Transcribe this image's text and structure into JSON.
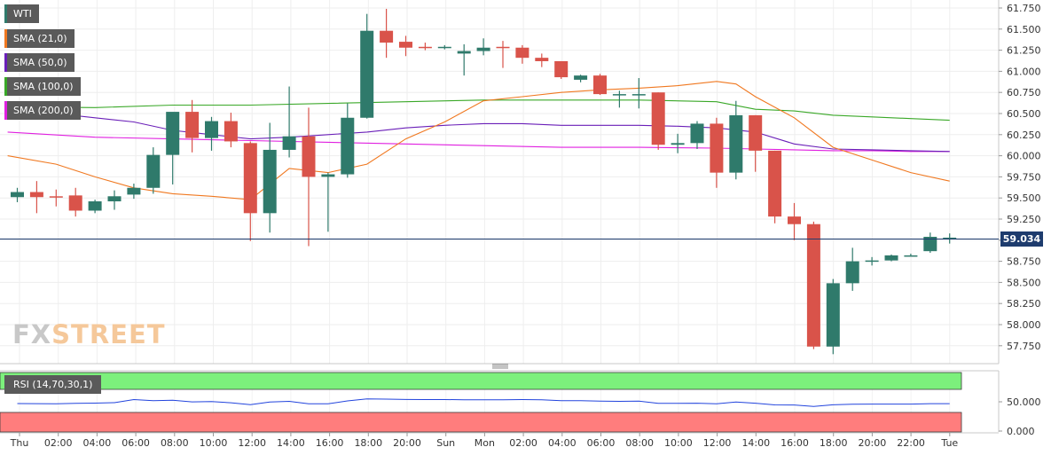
{
  "chart_data": [
    {
      "type": "candlestick",
      "symbol": "WTI",
      "current_price": "59.034",
      "yticks": [
        "61.750",
        "61.500",
        "61.250",
        "61.000",
        "60.750",
        "60.500",
        "60.250",
        "60.000",
        "59.750",
        "59.500",
        "59.250",
        "59.000",
        "58.750",
        "58.500",
        "58.250",
        "58.000",
        "57.750"
      ],
      "ylim": [
        57.65,
        61.82
      ],
      "xticks": [
        "Thu",
        "02:00",
        "04:00",
        "06:00",
        "08:00",
        "10:00",
        "12:00",
        "14:00",
        "16:00",
        "18:00",
        "20:00",
        "Sun",
        "Mon",
        "02:00",
        "04:00",
        "06:00",
        "08:00",
        "10:00",
        "12:00",
        "14:00",
        "16:00",
        "18:00",
        "20:00",
        "22:00",
        "Tue"
      ],
      "legend": [
        "WTI",
        "SMA (21,0)",
        "SMA (50,0)",
        "SMA (100,0)",
        "SMA (200,0)"
      ],
      "colors": {
        "up": "#2f7a6b",
        "down": "#d9534a",
        "sma21": "#f07820",
        "sma50": "#6a1fb8",
        "sma100": "#3aa828",
        "sma200": "#e020e0",
        "price_line": "#1e3c6e"
      },
      "candles": [
        {
          "o": 59.51,
          "h": 59.62,
          "l": 59.45,
          "c": 59.57
        },
        {
          "o": 59.57,
          "h": 59.7,
          "l": 59.32,
          "c": 59.51
        },
        {
          "o": 59.52,
          "h": 59.6,
          "l": 59.4,
          "c": 59.51
        },
        {
          "o": 59.53,
          "h": 59.62,
          "l": 59.28,
          "c": 59.35
        },
        {
          "o": 59.35,
          "h": 59.48,
          "l": 59.32,
          "c": 59.46
        },
        {
          "o": 59.46,
          "h": 59.59,
          "l": 59.36,
          "c": 59.52
        },
        {
          "o": 59.54,
          "h": 59.67,
          "l": 59.49,
          "c": 59.62
        },
        {
          "o": 59.62,
          "h": 60.1,
          "l": 59.55,
          "c": 60.01
        },
        {
          "o": 60.01,
          "h": 60.5,
          "l": 59.66,
          "c": 60.52
        },
        {
          "o": 60.52,
          "h": 60.66,
          "l": 60.04,
          "c": 60.21
        },
        {
          "o": 60.21,
          "h": 60.46,
          "l": 60.06,
          "c": 60.41
        },
        {
          "o": 60.41,
          "h": 60.51,
          "l": 60.1,
          "c": 60.17
        },
        {
          "o": 60.15,
          "h": 60.17,
          "l": 58.99,
          "c": 59.32
        },
        {
          "o": 59.32,
          "h": 60.39,
          "l": 59.09,
          "c": 60.07
        },
        {
          "o": 60.07,
          "h": 60.82,
          "l": 59.98,
          "c": 60.23
        },
        {
          "o": 60.23,
          "h": 60.57,
          "l": 58.93,
          "c": 59.75
        },
        {
          "o": 59.75,
          "h": 59.8,
          "l": 59.1,
          "c": 59.78
        },
        {
          "o": 59.78,
          "h": 60.62,
          "l": 59.74,
          "c": 60.45
        },
        {
          "o": 60.45,
          "h": 61.68,
          "l": 60.44,
          "c": 61.48
        },
        {
          "o": 61.48,
          "h": 61.74,
          "l": 61.16,
          "c": 61.34
        },
        {
          "o": 61.35,
          "h": 61.42,
          "l": 61.18,
          "c": 61.28
        },
        {
          "o": 61.29,
          "h": 61.34,
          "l": 61.25,
          "c": 61.28
        },
        {
          "o": 61.29,
          "h": 61.31,
          "l": 61.26,
          "c": 61.29
        },
        {
          "o": 61.21,
          "h": 61.32,
          "l": 60.95,
          "c": 61.24
        },
        {
          "o": 61.24,
          "h": 61.39,
          "l": 61.19,
          "c": 61.28
        },
        {
          "o": 61.29,
          "h": 61.36,
          "l": 61.04,
          "c": 61.28
        },
        {
          "o": 61.28,
          "h": 61.31,
          "l": 61.09,
          "c": 61.16
        },
        {
          "o": 61.16,
          "h": 61.21,
          "l": 61.05,
          "c": 61.12
        },
        {
          "o": 61.12,
          "h": 61.12,
          "l": 60.91,
          "c": 60.93
        },
        {
          "o": 60.9,
          "h": 60.96,
          "l": 60.87,
          "c": 60.95
        },
        {
          "o": 60.95,
          "h": 60.97,
          "l": 60.72,
          "c": 60.73
        },
        {
          "o": 60.73,
          "h": 60.77,
          "l": 60.57,
          "c": 60.73
        },
        {
          "o": 60.73,
          "h": 60.92,
          "l": 60.56,
          "c": 60.73
        },
        {
          "o": 60.75,
          "h": 60.75,
          "l": 60.07,
          "c": 60.13
        },
        {
          "o": 60.13,
          "h": 60.26,
          "l": 60.03,
          "c": 60.15
        },
        {
          "o": 60.15,
          "h": 60.41,
          "l": 60.08,
          "c": 60.38
        },
        {
          "o": 60.38,
          "h": 60.45,
          "l": 59.62,
          "c": 59.8
        },
        {
          "o": 59.8,
          "h": 60.65,
          "l": 59.72,
          "c": 60.48
        },
        {
          "o": 60.48,
          "h": 60.48,
          "l": 59.81,
          "c": 60.06
        },
        {
          "o": 60.06,
          "h": 60.06,
          "l": 59.2,
          "c": 59.28
        },
        {
          "o": 59.28,
          "h": 59.44,
          "l": 59.0,
          "c": 59.19
        },
        {
          "o": 59.19,
          "h": 59.22,
          "l": 57.71,
          "c": 57.74
        },
        {
          "o": 57.74,
          "h": 58.54,
          "l": 57.65,
          "c": 58.49
        },
        {
          "o": 58.49,
          "h": 58.91,
          "l": 58.4,
          "c": 58.75
        },
        {
          "o": 58.75,
          "h": 58.8,
          "l": 58.7,
          "c": 58.76
        },
        {
          "o": 58.76,
          "h": 58.83,
          "l": 58.75,
          "c": 58.82
        },
        {
          "o": 58.82,
          "h": 58.84,
          "l": 58.81,
          "c": 58.82
        },
        {
          "o": 58.87,
          "h": 59.09,
          "l": 58.85,
          "c": 59.04
        },
        {
          "o": 59.03,
          "h": 59.08,
          "l": 58.96,
          "c": 59.03
        }
      ],
      "sma21": [
        [
          -0.5,
          60.0
        ],
        [
          2,
          59.9
        ],
        [
          4,
          59.75
        ],
        [
          6,
          59.62
        ],
        [
          8,
          59.55
        ],
        [
          10,
          59.52
        ],
        [
          12,
          59.48
        ],
        [
          14,
          59.85
        ],
        [
          16,
          59.8
        ],
        [
          18,
          59.9
        ],
        [
          20,
          60.2
        ],
        [
          22,
          60.4
        ],
        [
          24,
          60.65
        ],
        [
          26,
          60.7
        ],
        [
          28,
          60.75
        ],
        [
          30,
          60.78
        ],
        [
          32,
          60.8
        ],
        [
          34,
          60.83
        ],
        [
          36,
          60.88
        ],
        [
          37,
          60.85
        ],
        [
          38,
          60.7
        ],
        [
          40,
          60.45
        ],
        [
          42,
          60.1
        ],
        [
          44,
          59.95
        ],
        [
          46,
          59.8
        ],
        [
          48,
          59.7
        ]
      ],
      "sma50": [
        [
          -0.5,
          60.55
        ],
        [
          2,
          60.5
        ],
        [
          4,
          60.45
        ],
        [
          6,
          60.4
        ],
        [
          8,
          60.3
        ],
        [
          10,
          60.25
        ],
        [
          12,
          60.2
        ],
        [
          14,
          60.22
        ],
        [
          16,
          60.25
        ],
        [
          18,
          60.28
        ],
        [
          20,
          60.33
        ],
        [
          22,
          60.36
        ],
        [
          24,
          60.38
        ],
        [
          26,
          60.38
        ],
        [
          28,
          60.36
        ],
        [
          30,
          60.36
        ],
        [
          32,
          60.36
        ],
        [
          34,
          60.35
        ],
        [
          36,
          60.33
        ],
        [
          38,
          60.28
        ],
        [
          40,
          60.14
        ],
        [
          42,
          60.08
        ],
        [
          44,
          60.07
        ],
        [
          46,
          60.06
        ],
        [
          48,
          60.05
        ]
      ],
      "sma100": [
        [
          -0.5,
          60.58
        ],
        [
          4,
          60.57
        ],
        [
          8,
          60.6
        ],
        [
          12,
          60.6
        ],
        [
          16,
          60.62
        ],
        [
          20,
          60.64
        ],
        [
          24,
          60.66
        ],
        [
          28,
          60.66
        ],
        [
          32,
          60.66
        ],
        [
          36,
          60.64
        ],
        [
          38,
          60.55
        ],
        [
          40,
          60.53
        ],
        [
          42,
          60.48
        ],
        [
          44,
          60.46
        ],
        [
          46,
          60.44
        ],
        [
          48,
          60.42
        ]
      ],
      "sma200": [
        [
          -0.5,
          60.28
        ],
        [
          4,
          60.22
        ],
        [
          8,
          60.2
        ],
        [
          12,
          60.18
        ],
        [
          16,
          60.16
        ],
        [
          20,
          60.14
        ],
        [
          24,
          60.12
        ],
        [
          28,
          60.1
        ],
        [
          32,
          60.1
        ],
        [
          36,
          60.09
        ],
        [
          38,
          60.08
        ],
        [
          40,
          60.07
        ],
        [
          42,
          60.06
        ],
        [
          44,
          60.06
        ],
        [
          46,
          60.05
        ],
        [
          48,
          60.05
        ]
      ]
    },
    {
      "type": "line",
      "legend": "RSI (14,70,30,1)",
      "yticks": [
        "50.000",
        "0.000"
      ],
      "bands": {
        "overbought": "#7cf07c",
        "oversold": "#ff7d7d"
      },
      "values": [
        47,
        46.8,
        46.5,
        47.2,
        47.8,
        48.5,
        53.8,
        51.8,
        52.8,
        49.8,
        50.3,
        48.3,
        45,
        49.5,
        50.8,
        46.5,
        46.5,
        51.5,
        55,
        54.5,
        54,
        53.8,
        53.8,
        53.5,
        53.4,
        53.5,
        53.8,
        53.5,
        52,
        52,
        51,
        50.8,
        51,
        47.2,
        47.2,
        47.5,
        46.5,
        49.5,
        47.5,
        44.7,
        44.5,
        42,
        44.8,
        45.7,
        46,
        46,
        46,
        46.8,
        46.8
      ]
    }
  ]
}
